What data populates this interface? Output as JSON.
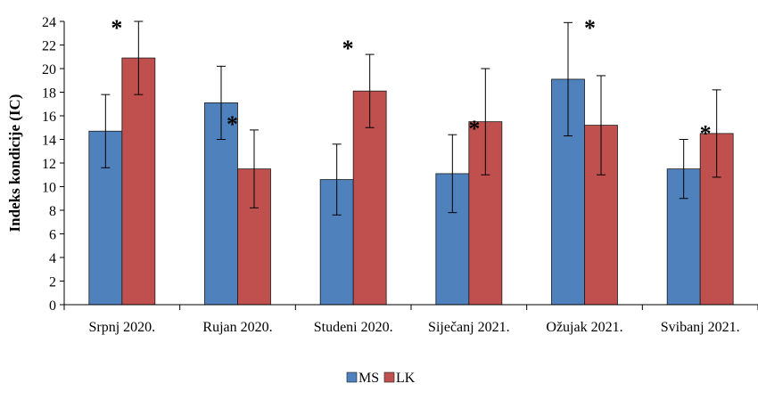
{
  "chart_data": {
    "type": "bar",
    "title": "",
    "xlabel": "",
    "ylabel": "Indeks kondicije (IC)",
    "ylim": [
      0,
      24
    ],
    "yticks": [
      0,
      2,
      4,
      6,
      8,
      10,
      12,
      14,
      16,
      18,
      20,
      22,
      24
    ],
    "grid": false,
    "legend_position": "bottom",
    "categories": [
      "Srpnj 2020.",
      "Rujan 2020.",
      "Studeni 2020.",
      "Siječanj 2021.",
      "Ožujak 2021.",
      "Svibanj 2021."
    ],
    "series": [
      {
        "name": "MS",
        "color": "#4f81bd",
        "values": [
          14.7,
          17.1,
          10.6,
          11.1,
          19.1,
          11.5
        ],
        "errors": [
          3.1,
          3.1,
          3.0,
          3.3,
          4.8,
          2.5
        ]
      },
      {
        "name": "LK",
        "color": "#c0504d",
        "values": [
          20.9,
          11.5,
          18.1,
          15.5,
          15.2,
          14.5
        ],
        "errors": [
          3.1,
          3.3,
          3.1,
          4.5,
          4.2,
          3.7
        ]
      }
    ],
    "annotations": [
      {
        "category_index": 0,
        "series_index": 1,
        "text": "*"
      },
      {
        "category_index": 1,
        "series_index": 1,
        "text": "*"
      },
      {
        "category_index": 2,
        "series_index": 1,
        "text": "*"
      },
      {
        "category_index": 3,
        "series_index": 0,
        "text": "*"
      },
      {
        "category_index": 4,
        "series_index": 0,
        "text": "*"
      },
      {
        "category_index": 5,
        "series_index": 0,
        "text": "*"
      }
    ]
  }
}
